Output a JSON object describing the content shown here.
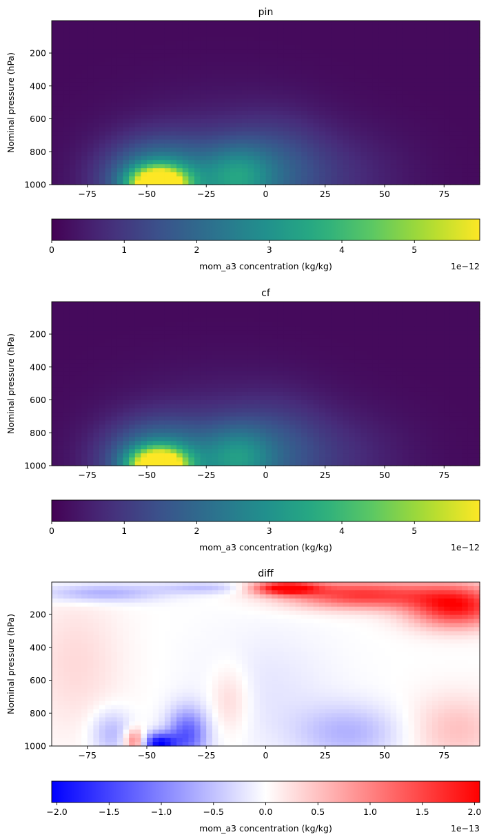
{
  "chart_data": [
    {
      "type": "heatmap",
      "title": "pin",
      "ylabel": "Nominal pressure (hPa)",
      "xlabel": "",
      "xlim": [
        -90,
        90
      ],
      "ylim": [
        1000,
        3
      ],
      "y_axis_inverted": true,
      "xticks": [
        "−75",
        "−50",
        "−25",
        "0",
        "25",
        "50",
        "75"
      ],
      "xtick_values": [
        -75,
        -50,
        -25,
        0,
        25,
        50,
        75
      ],
      "yticks": [
        "200",
        "400",
        "600",
        "800",
        "1000"
      ],
      "ytick_values": [
        200,
        400,
        600,
        800,
        1000
      ],
      "colormap": "viridis",
      "colorbar": {
        "label": "mom_a3 concentration (kg/kg)",
        "range": [
          0,
          5.9
        ],
        "ticks": [
          "0",
          "1",
          "2",
          "3",
          "4",
          "5"
        ],
        "tick_values": [
          0,
          1,
          2,
          3,
          4,
          5
        ],
        "offset_text": "1e−12",
        "orientation": "horizontal"
      },
      "features": [
        {
          "lat": -45,
          "p": 1000,
          "value": 5.9,
          "sx": 8,
          "sp": 70
        },
        {
          "lat": -45,
          "p": 970,
          "value": 2.6,
          "sx": 16,
          "sp": 160
        },
        {
          "lat": -12,
          "p": 960,
          "value": 1.9,
          "sx": 10,
          "sp": 140
        },
        {
          "lat": -20,
          "p": 900,
          "value": 0.7,
          "sx": 30,
          "sp": 280
        },
        {
          "lat": 5,
          "p": 930,
          "value": 0.9,
          "sx": 14,
          "sp": 220
        },
        {
          "lat": 30,
          "p": 950,
          "value": 0.5,
          "sx": 22,
          "sp": 200
        }
      ],
      "background": 0.15
    },
    {
      "type": "heatmap",
      "title": "cf",
      "ylabel": "Nominal pressure (hPa)",
      "xlabel": "",
      "xlim": [
        -90,
        90
      ],
      "ylim": [
        1000,
        3
      ],
      "y_axis_inverted": true,
      "xticks": [
        "−75",
        "−50",
        "−25",
        "0",
        "25",
        "50",
        "75"
      ],
      "xtick_values": [
        -75,
        -50,
        -25,
        0,
        25,
        50,
        75
      ],
      "yticks": [
        "200",
        "400",
        "600",
        "800",
        "1000"
      ],
      "ytick_values": [
        200,
        400,
        600,
        800,
        1000
      ],
      "colormap": "viridis",
      "colorbar": {
        "label": "mom_a3 concentration (kg/kg)",
        "range": [
          0,
          5.9
        ],
        "ticks": [
          "0",
          "1",
          "2",
          "3",
          "4",
          "5"
        ],
        "tick_values": [
          0,
          1,
          2,
          3,
          4,
          5
        ],
        "offset_text": "1e−12",
        "orientation": "horizontal"
      },
      "features": [
        {
          "lat": -45,
          "p": 1000,
          "value": 5.9,
          "sx": 8,
          "sp": 70
        },
        {
          "lat": -45,
          "p": 970,
          "value": 2.4,
          "sx": 16,
          "sp": 160
        },
        {
          "lat": -12,
          "p": 960,
          "value": 1.8,
          "sx": 10,
          "sp": 140
        },
        {
          "lat": -20,
          "p": 900,
          "value": 0.7,
          "sx": 30,
          "sp": 280
        },
        {
          "lat": 5,
          "p": 930,
          "value": 0.8,
          "sx": 14,
          "sp": 220
        },
        {
          "lat": 30,
          "p": 950,
          "value": 0.5,
          "sx": 22,
          "sp": 200
        }
      ],
      "background": 0.15
    },
    {
      "type": "heatmap",
      "title": "diff",
      "ylabel": "Nominal pressure (hPa)",
      "xlabel": "",
      "xlim": [
        -90,
        90
      ],
      "ylim": [
        1000,
        3
      ],
      "y_axis_inverted": true,
      "xticks": [
        "−75",
        "−50",
        "−25",
        "0",
        "25",
        "50",
        "75"
      ],
      "xtick_values": [
        -75,
        -50,
        -25,
        0,
        25,
        50,
        75
      ],
      "yticks": [
        "200",
        "400",
        "600",
        "800",
        "1000"
      ],
      "ytick_values": [
        200,
        400,
        600,
        800,
        1000
      ],
      "colormap": "bwr",
      "colorbar": {
        "label": "mom_a3 concentration (kg/kg)",
        "range": [
          -2.05,
          2.05
        ],
        "ticks": [
          "−2.0",
          "−1.5",
          "−1.0",
          "−0.5",
          "0.0",
          "0.5",
          "1.0",
          "1.5",
          "2.0"
        ],
        "tick_values": [
          -2.0,
          -1.5,
          -1.0,
          -0.5,
          0.0,
          0.5,
          1.0,
          1.5,
          2.0
        ],
        "offset_text": "1e−13",
        "orientation": "horizontal"
      },
      "features": [
        {
          "lat": 8,
          "p": 40,
          "value": 2.0,
          "sx": 10,
          "sp": 30
        },
        {
          "lat": 40,
          "p": 80,
          "value": 1.6,
          "sx": 22,
          "sp": 60
        },
        {
          "lat": 80,
          "p": 150,
          "value": 1.9,
          "sx": 14,
          "sp": 90
        },
        {
          "lat": -70,
          "p": 70,
          "value": -0.7,
          "sx": 18,
          "sp": 40
        },
        {
          "lat": -25,
          "p": 40,
          "value": -0.5,
          "sx": 14,
          "sp": 25
        },
        {
          "lat": -45,
          "p": 985,
          "value": -1.9,
          "sx": 5,
          "sp": 45
        },
        {
          "lat": -33,
          "p": 930,
          "value": -1.3,
          "sx": 6,
          "sp": 110
        },
        {
          "lat": -55,
          "p": 970,
          "value": 1.2,
          "sx": 3,
          "sp": 50
        },
        {
          "lat": -65,
          "p": 920,
          "value": -0.6,
          "sx": 6,
          "sp": 100
        },
        {
          "lat": -15,
          "p": 720,
          "value": 0.4,
          "sx": 6,
          "sp": 150
        },
        {
          "lat": 35,
          "p": 920,
          "value": -0.6,
          "sx": 16,
          "sp": 120
        },
        {
          "lat": 80,
          "p": 900,
          "value": 0.5,
          "sx": 14,
          "sp": 150
        },
        {
          "lat": -80,
          "p": 500,
          "value": 0.3,
          "sx": 14,
          "sp": 300
        },
        {
          "lat": 0,
          "p": 650,
          "value": -0.2,
          "sx": 20,
          "sp": 250
        }
      ],
      "background": 0.1
    }
  ]
}
